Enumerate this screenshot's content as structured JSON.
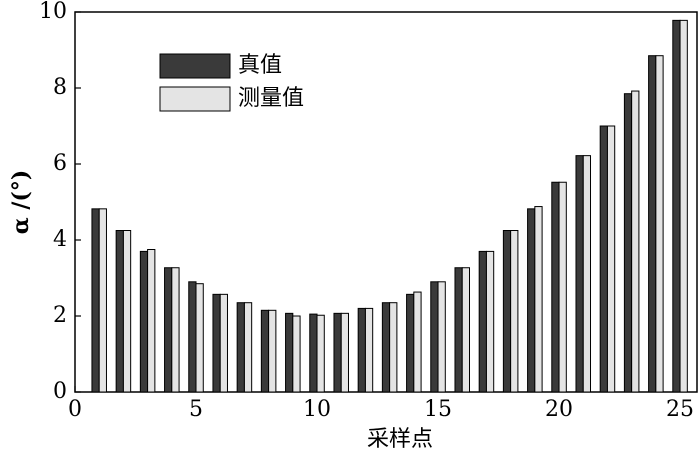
{
  "chart_data": {
    "type": "bar",
    "xlabel": "采样点",
    "ylabel": "α /(°)",
    "x": [
      1,
      2,
      3,
      4,
      5,
      6,
      7,
      8,
      9,
      10,
      11,
      12,
      13,
      14,
      15,
      16,
      17,
      18,
      19,
      20,
      21,
      22,
      23,
      24,
      25
    ],
    "series": [
      {
        "name": "真值",
        "color": "#3a3a3a",
        "values": [
          4.82,
          4.25,
          3.7,
          3.27,
          2.9,
          2.57,
          2.35,
          2.15,
          2.07,
          2.05,
          2.07,
          2.2,
          2.35,
          2.57,
          2.9,
          3.27,
          3.7,
          4.25,
          4.82,
          5.52,
          6.22,
          7.0,
          7.85,
          8.85,
          9.78
        ]
      },
      {
        "name": "测量值",
        "color": "#e4e4e4",
        "values": [
          4.82,
          4.25,
          3.75,
          3.27,
          2.85,
          2.57,
          2.35,
          2.15,
          2.0,
          2.02,
          2.07,
          2.2,
          2.35,
          2.63,
          2.9,
          3.27,
          3.7,
          4.25,
          4.88,
          5.52,
          6.22,
          7.0,
          7.92,
          8.85,
          9.78
        ]
      }
    ],
    "xlim": [
      0,
      25.7
    ],
    "ylim": [
      0,
      10
    ],
    "xticks": [
      0,
      5,
      10,
      15,
      20,
      25
    ],
    "yticks": [
      0,
      2,
      4,
      6,
      8,
      10
    ],
    "legend": "upper-left"
  }
}
